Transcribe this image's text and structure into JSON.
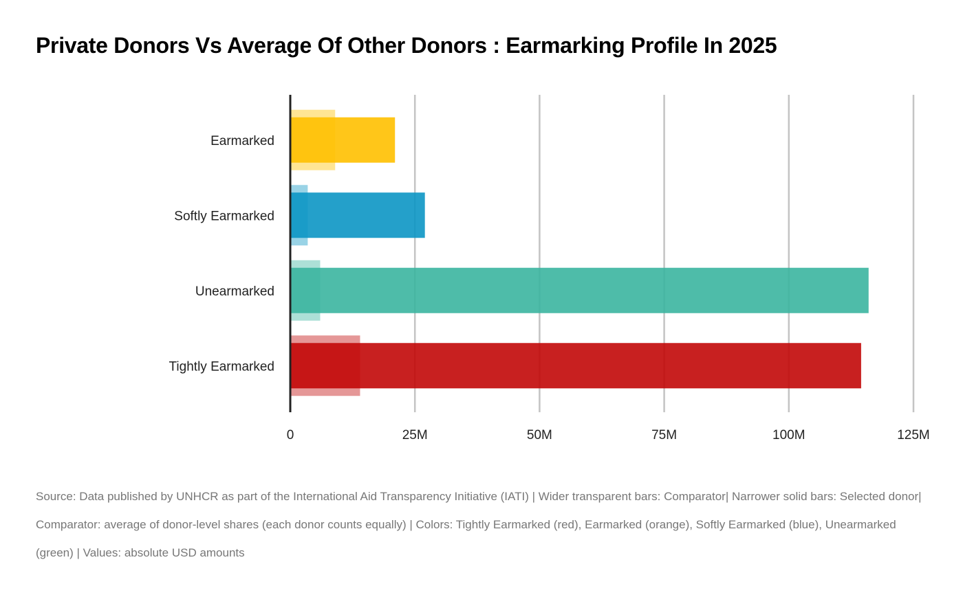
{
  "chart_data": {
    "type": "bar",
    "orientation": "horizontal",
    "title": "Private Donors Vs Average Of Other Donors : Earmarking Profile In 2025",
    "categories": [
      "Earmarked",
      "Softly Earmarked",
      "Unearmarked",
      "Tightly Earmarked"
    ],
    "colors": [
      "#FFC000",
      "#0C96C4",
      "#3BB5A0",
      "#C20808"
    ],
    "series": [
      {
        "name": "Comparator",
        "style": "wider transparent",
        "values": [
          9.0,
          3.5,
          6.0,
          14.0
        ]
      },
      {
        "name": "Selected donor",
        "style": "narrower solid",
        "values": [
          21.0,
          27.0,
          116.0,
          114.5
        ]
      }
    ],
    "units": "M USD",
    "xlim": [
      0,
      125
    ],
    "xticks": [
      0,
      25,
      50,
      75,
      100,
      125
    ],
    "xtick_labels": [
      "0",
      "25M",
      "50M",
      "75M",
      "100M",
      "125M"
    ],
    "xlabel": "",
    "ylabel": "",
    "grid": "vertical",
    "caption": "Source: Data published by UNHCR as part of the International Aid Transparency Initiative (IATI) | Wider transparent bars: Comparator| Narrower solid bars: Selected donor| Comparator: average of donor-level shares (each donor counts equally) | Colors: Tightly Earmarked (red), Earmarked (orange), Softly Earmarked (blue), Unearmarked (green) | Values: absolute USD amounts"
  }
}
